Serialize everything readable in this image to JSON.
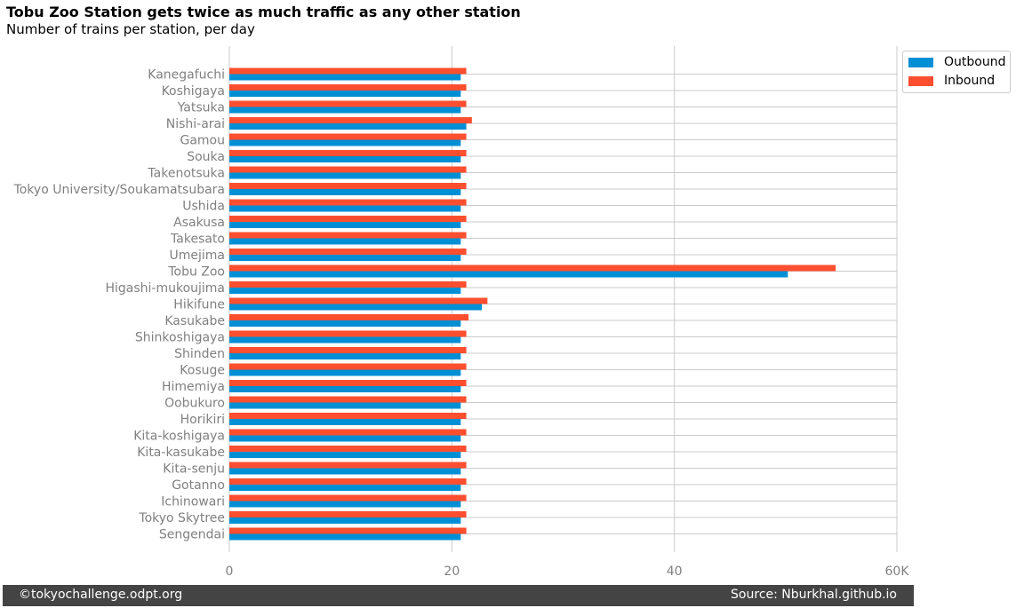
{
  "title": "Tobu Zoo Station gets twice as much traffic as any other station",
  "subtitle": "Number of trains per station, per day",
  "footer": {
    "left": "©tokyochallenge.odpt.org",
    "right": "Source: Nburkhal.github.io"
  },
  "colors": {
    "outbound": "#008fd5",
    "inbound": "#fc4f30",
    "grid": "#cbcbcb",
    "tick_text": "#808080",
    "footer_bg": "#444444"
  },
  "chart_data": {
    "type": "bar",
    "orientation": "horizontal",
    "categories": [
      "Kanegafuchi",
      "Koshigaya",
      "Yatsuka",
      "Nishi-arai",
      "Gamou",
      "Souka",
      "Takenotsuka",
      "Tokyo University/Soukamatsubara",
      "Ushida",
      "Asakusa",
      "Takesato",
      "Umejima",
      "Tobu Zoo",
      "Higashi-mukoujima",
      "Hikifune",
      "Kasukabe",
      "Shinkoshigaya",
      "Shinden",
      "Kosuge",
      "Himemiya",
      "Oobukuro",
      "Horikiri",
      "Kita-koshigaya",
      "Kita-kasukabe",
      "Kita-senju",
      "Gotanno",
      "Ichinowari",
      "Tokyo Skytree",
      "Sengendai"
    ],
    "series": [
      {
        "name": "Outbound",
        "values": [
          20.8,
          20.8,
          20.8,
          21.3,
          20.8,
          20.8,
          20.8,
          20.8,
          20.8,
          20.8,
          20.8,
          20.8,
          50.2,
          20.8,
          22.7,
          20.8,
          20.8,
          20.8,
          20.8,
          20.8,
          20.8,
          20.8,
          20.8,
          20.8,
          20.8,
          20.8,
          20.8,
          20.8,
          20.8
        ]
      },
      {
        "name": "Inbound",
        "values": [
          21.3,
          21.3,
          21.3,
          21.8,
          21.3,
          21.3,
          21.3,
          21.3,
          21.3,
          21.3,
          21.3,
          21.3,
          54.5,
          21.3,
          23.2,
          21.5,
          21.3,
          21.3,
          21.3,
          21.3,
          21.3,
          21.3,
          21.3,
          21.3,
          21.3,
          21.3,
          21.3,
          21.3,
          21.3
        ]
      }
    ],
    "xlim": [
      0,
      60
    ],
    "xticks": [
      0,
      20,
      40,
      60
    ],
    "xtick_labels": [
      "0",
      "20",
      "40",
      "60K"
    ],
    "grid": true,
    "legend_position": "top-right"
  }
}
